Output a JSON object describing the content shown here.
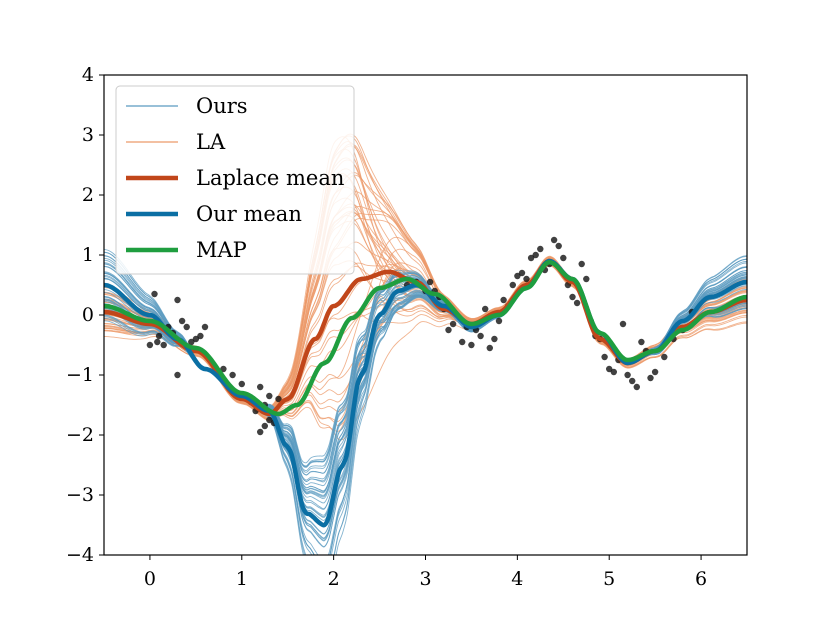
{
  "chart_data": {
    "type": "line",
    "title": "",
    "xlabel": "",
    "ylabel": "",
    "xlim": [
      -0.5,
      6.5
    ],
    "ylim": [
      -4,
      4
    ],
    "xticks": [
      0,
      1,
      2,
      3,
      4,
      5,
      6
    ],
    "yticks": [
      -4,
      -3,
      -2,
      -1,
      0,
      1,
      2,
      3,
      4
    ],
    "xtick_labels": [
      "0",
      "1",
      "2",
      "3",
      "4",
      "5",
      "6"
    ],
    "ytick_labels": [
      "−4",
      "−3",
      "−2",
      "−1",
      "0",
      "1",
      "2",
      "3",
      "4"
    ],
    "grid": false,
    "legend_position": "top-left",
    "legend": [
      {
        "label": "Ours",
        "color": "#5b9bc0",
        "style": "thin"
      },
      {
        "label": "LA",
        "color": "#ec9a6a",
        "style": "thin"
      },
      {
        "label": "Laplace mean",
        "color": "#c1461a",
        "style": "thick"
      },
      {
        "label": "Our mean",
        "color": "#0b6fa4",
        "style": "thick"
      },
      {
        "label": "MAP",
        "color": "#1f9e3f",
        "style": "thick"
      }
    ],
    "series": [
      {
        "name": "Laplace mean",
        "color": "#c1461a",
        "x": [
          -0.5,
          0.0,
          0.5,
          1.0,
          1.3,
          1.5,
          1.8,
          2.0,
          2.3,
          2.6,
          2.9,
          3.2,
          3.5,
          3.8,
          4.1,
          4.35,
          4.6,
          4.9,
          5.2,
          5.5,
          5.8,
          6.1,
          6.5
        ],
        "y": [
          0.05,
          -0.15,
          -0.6,
          -1.4,
          -1.65,
          -1.4,
          -0.4,
          0.15,
          0.6,
          0.72,
          0.55,
          0.1,
          -0.15,
          0.05,
          0.5,
          0.9,
          0.55,
          -0.4,
          -0.8,
          -0.6,
          -0.2,
          0.05,
          0.25
        ]
      },
      {
        "name": "Our mean",
        "color": "#0b6fa4",
        "x": [
          -0.5,
          0.0,
          0.3,
          0.6,
          1.0,
          1.3,
          1.5,
          1.7,
          1.9,
          2.1,
          2.3,
          2.5,
          2.7,
          2.9,
          3.2,
          3.5,
          3.8,
          4.1,
          4.35,
          4.6,
          4.9,
          5.2,
          5.5,
          5.8,
          6.1,
          6.5
        ],
        "y": [
          0.5,
          0.0,
          -0.4,
          -0.9,
          -1.35,
          -1.6,
          -2.2,
          -3.3,
          -3.5,
          -2.5,
          -1.0,
          0.0,
          0.4,
          0.5,
          0.15,
          -0.2,
          0.0,
          0.45,
          0.9,
          0.6,
          -0.3,
          -0.8,
          -0.6,
          -0.1,
          0.3,
          0.55
        ]
      },
      {
        "name": "MAP",
        "color": "#1f9e3f",
        "x": [
          -0.5,
          0.0,
          0.5,
          1.0,
          1.4,
          1.6,
          1.9,
          2.2,
          2.5,
          2.8,
          3.1,
          3.5,
          3.8,
          4.1,
          4.35,
          4.6,
          4.9,
          5.2,
          5.5,
          5.8,
          6.1,
          6.5
        ],
        "y": [
          0.15,
          -0.1,
          -0.55,
          -1.3,
          -1.65,
          -1.5,
          -0.8,
          -0.05,
          0.45,
          0.6,
          0.35,
          -0.15,
          0.0,
          0.45,
          0.88,
          0.6,
          -0.3,
          -0.75,
          -0.6,
          -0.25,
          0.05,
          0.3
        ]
      }
    ],
    "scatter": {
      "color": "#111111",
      "x": [
        0.05,
        0.08,
        0.1,
        0.15,
        0.2,
        0.25,
        0.3,
        0.35,
        0.4,
        0.45,
        0.5,
        0.55,
        0.6,
        0.0,
        0.3,
        0.8,
        0.9,
        0.95,
        1.0,
        1.05,
        1.1,
        1.15,
        1.2,
        1.25,
        1.3,
        1.35,
        1.4,
        1.2,
        1.25,
        1.3,
        2.8,
        2.9,
        3.0,
        3.05,
        3.1,
        3.15,
        3.2,
        3.25,
        3.3,
        3.4,
        3.45,
        3.5,
        3.55,
        3.6,
        3.65,
        3.7,
        3.75,
        3.8,
        3.85,
        3.9,
        3.95,
        4.0,
        4.05,
        4.1,
        4.15,
        4.2,
        4.25,
        4.3,
        4.35,
        4.4,
        4.45,
        4.5,
        4.55,
        4.6,
        4.65,
        4.7,
        4.75,
        4.8,
        4.85,
        4.9,
        4.95,
        5.0,
        5.05,
        5.1,
        5.15,
        5.2,
        5.25,
        5.3,
        5.35,
        5.4,
        5.45,
        5.5,
        5.6,
        5.7,
        5.8,
        5.9
      ],
      "y": [
        0.35,
        -0.45,
        -0.35,
        -0.5,
        -0.2,
        -0.3,
        0.25,
        -0.1,
        -0.2,
        -0.45,
        -0.4,
        -0.35,
        -0.2,
        -0.5,
        -1.0,
        -0.9,
        -1.0,
        -1.3,
        -1.15,
        -1.35,
        -1.45,
        -1.6,
        -1.2,
        -1.5,
        -1.35,
        -1.8,
        -1.4,
        -1.95,
        -1.85,
        -1.75,
        0.5,
        0.55,
        0.4,
        0.55,
        0.4,
        0.3,
        0.1,
        -0.25,
        -0.15,
        -0.45,
        -0.2,
        -0.5,
        -0.25,
        -0.35,
        0.1,
        -0.55,
        -0.4,
        -0.1,
        0.25,
        0.15,
        0.5,
        0.65,
        0.7,
        0.6,
        0.95,
        1.0,
        1.1,
        0.75,
        0.85,
        1.25,
        1.15,
        0.95,
        0.5,
        0.3,
        0.2,
        0.85,
        0.6,
        -0.1,
        -0.35,
        -0.4,
        -0.7,
        -0.9,
        -0.95,
        -0.75,
        -0.15,
        -1.0,
        -1.1,
        -1.2,
        -0.45,
        -0.6,
        -1.05,
        -0.95,
        -0.7,
        -0.4,
        -0.25,
        0.05
      ]
    }
  }
}
